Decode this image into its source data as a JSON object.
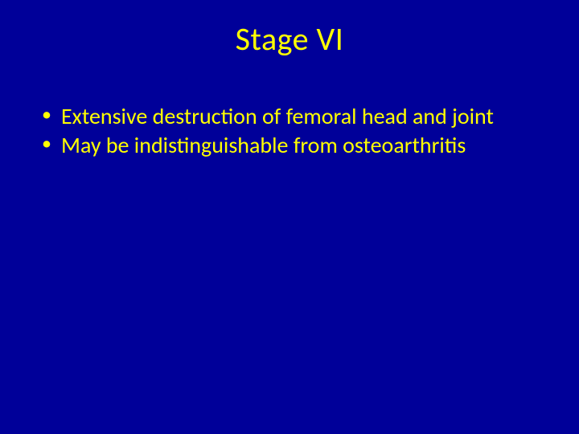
{
  "slide": {
    "title": "Stage VI",
    "bullets": [
      "Extensive destruction of femoral head and joint",
      "May be indistinguishable from osteoarthritis"
    ],
    "background_color": "#000099",
    "text_color": "#ffff00",
    "title_fontsize": 40,
    "body_fontsize": 28
  }
}
